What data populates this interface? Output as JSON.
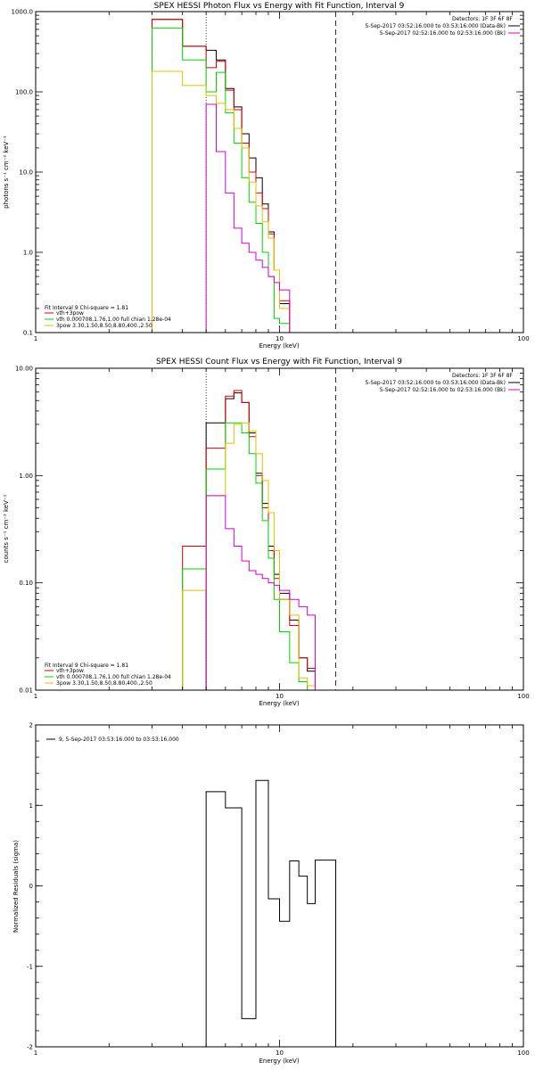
{
  "colors": {
    "axes": "#000000",
    "total": "#000000",
    "fit_sum": "#d40000",
    "vth": "#00d400",
    "bpow": "#e0c000",
    "background": "#d000d0"
  },
  "chart_data": [
    {
      "type": "line",
      "title": "SPEX HESSI Photon Flux vs Energy with Fit Function, Interval 9",
      "xlabel": "Energy (keV)",
      "ylabel": "photons s⁻¹ cm⁻² keV⁻¹",
      "xscale": "log",
      "yscale": "log",
      "xlim": [
        1,
        100
      ],
      "ylim": [
        0.1,
        1000
      ],
      "xtick_labels": [
        "1",
        "10",
        "100"
      ],
      "ytick_values": [
        0.1,
        1,
        10,
        100,
        1000
      ],
      "ytick_labels": [
        "0.1",
        "1.0",
        "10.0",
        "100.0",
        "1000.0"
      ],
      "fit_range_keV": [
        5.0,
        17.0
      ],
      "bin_edges": [
        3.0,
        4.0,
        5.0,
        5.5,
        6.0,
        6.5,
        7.0,
        7.5,
        8.0,
        8.5,
        9.0,
        9.5,
        10.0,
        11.0,
        12.0,
        13.0,
        14.0,
        15.0,
        16.0,
        17.0,
        18.0
      ],
      "series": [
        {
          "key": "total",
          "values": [
            800,
            370,
            330,
            250,
            110,
            65,
            30,
            15,
            8.5,
            4.0,
            1.8,
            0.6,
            0.23
          ]
        },
        {
          "key": "fit_sum",
          "values": [
            800,
            370,
            200,
            240,
            105,
            60,
            23,
            10,
            5.5,
            3.5,
            1.7,
            0.6,
            0.25
          ]
        },
        {
          "key": "vth",
          "values": [
            620,
            250,
            100,
            175,
            55,
            23,
            8.5,
            4.2,
            2.3,
            1.0,
            0.5,
            0.15,
            0.13
          ]
        },
        {
          "key": "bpow",
          "values": [
            180,
            120,
            90,
            72,
            60,
            35,
            20,
            7.5,
            3.8,
            2.4,
            1.5,
            0.6,
            0.2
          ]
        },
        {
          "key": "background",
          "start": 2,
          "values": [
            70,
            18,
            5.5,
            2.0,
            1.3,
            1.0,
            0.8,
            0.65,
            0.5,
            0.42,
            0.34
          ]
        }
      ],
      "annotations": {
        "header": "Detectors: 1F 3F 6F 8F",
        "legend_right": [
          {
            "key": "total",
            "text": "5-Sep-2017 03:52:16.000 to 03:53:16.000 (Data-Bk)"
          },
          {
            "key": "background",
            "text": "5-Sep-2017 02:52:16.000 to 02:53:16.000 (Bk)"
          }
        ],
        "fit_title": "Fit Interval 9   Chi-square = 1.81",
        "legend_left": [
          {
            "key": "fit_sum",
            "text": "vth+3pow"
          },
          {
            "key": "vth",
            "text": "vth 0.000708,1.76,1.00  full chian 1.28e-04"
          },
          {
            "key": "bpow",
            "text": "3pow 3.30,1.50,8.50,8.80,400.,2.50"
          }
        ]
      }
    },
    {
      "type": "line",
      "title": "SPEX HESSI Count Flux vs Energy with Fit Function, Interval 9",
      "xlabel": "Energy (keV)",
      "ylabel": "counts s⁻¹ cm⁻² keV⁻¹",
      "xscale": "log",
      "yscale": "log",
      "xlim": [
        1,
        100
      ],
      "ylim": [
        0.01,
        10
      ],
      "xtick_labels": [
        "1",
        "10",
        "100"
      ],
      "ytick_values": [
        0.01,
        0.1,
        1,
        10
      ],
      "ytick_labels": [
        "0.01",
        "0.10",
        "1.00",
        "10.00"
      ],
      "fit_range_keV": [
        5.0,
        17.0
      ],
      "bin_edges": [
        4.0,
        5.0,
        6.0,
        6.5,
        7.0,
        7.5,
        8.0,
        8.5,
        9.0,
        9.5,
        10.0,
        11.0,
        12.0,
        13.0,
        14.0,
        15.0,
        16.0,
        17.0,
        18.0
      ],
      "series": [
        {
          "key": "total",
          "start": 1,
          "values": [
            3.1,
            5.2,
            5.9,
            4.8,
            2.5,
            1.05,
            0.55,
            0.22,
            0.12,
            0.08,
            0.045,
            0.02,
            0.015
          ]
        },
        {
          "key": "fit_sum",
          "values": [
            0.22,
            1.8,
            5.5,
            6.2,
            4.8,
            2.3,
            1.0,
            0.5,
            0.2,
            0.11,
            0.07,
            0.04,
            0.02,
            0.016
          ]
        },
        {
          "key": "vth",
          "values": [
            0.135,
            1.15,
            3.1,
            3.1,
            2.5,
            1.6,
            0.85,
            0.38,
            0.17,
            0.07,
            0.035,
            0.018,
            0.012
          ]
        },
        {
          "key": "bpow",
          "values": [
            0.085,
            0.65,
            2.0,
            3.0,
            3.1,
            2.6,
            1.6,
            0.9,
            0.45,
            0.2,
            0.07,
            0.05,
            0.013,
            0.011
          ]
        },
        {
          "key": "background",
          "start": 1,
          "values": [
            0.65,
            0.32,
            0.22,
            0.16,
            0.13,
            0.12,
            0.11,
            0.1,
            0.095,
            0.085,
            0.07,
            0.06,
            0.05
          ]
        }
      ],
      "annotations": {
        "header": "Detectors: 1F 3F 6F 8F",
        "legend_right": [
          {
            "key": "total",
            "text": "5-Sep-2017 03:52:16.000 to 03:53:16.000 (Data-Bk)"
          },
          {
            "key": "background",
            "text": "5-Sep-2017 02:52:16.000 to 02:53:16.000 (Bk)"
          }
        ],
        "fit_title": "Fit Interval 9   Chi-square = 1.81",
        "legend_left": [
          {
            "key": "fit_sum",
            "text": "vth+3pow"
          },
          {
            "key": "vth",
            "text": "vth 0.000708,1.76,1.00  full chian 1.28e-04"
          },
          {
            "key": "bpow",
            "text": "3pow 3.30,1.50,8.50,8.80,400.,2.50"
          }
        ]
      }
    },
    {
      "type": "line",
      "title": "",
      "xlabel": "Energy (keV)",
      "ylabel": "Normalized Residuals (sigma)",
      "xscale": "log",
      "yscale": "linear",
      "xlim": [
        1,
        100
      ],
      "ylim": [
        -2,
        2
      ],
      "xtick_labels": [
        "1",
        "10",
        "100"
      ],
      "ytick_values": [
        -2,
        -1,
        0,
        1,
        2
      ],
      "ytick_labels": [
        "-2",
        "-1",
        "0",
        "1",
        "2"
      ],
      "bin_edges": [
        5.0,
        6.0,
        7.0,
        8.0,
        9.0,
        10.0,
        11.0,
        12.0,
        13.0,
        14.0,
        15.0,
        17.0
      ],
      "series": [
        {
          "key": "total",
          "name": "9,  5-Sep-2017 03:53:16.000 to 03:53:16.000",
          "values": [
            1.17,
            0.97,
            -1.65,
            1.31,
            -0.16,
            -0.44,
            0.31,
            0.12,
            -0.22,
            0.32,
            0.32
          ]
        }
      ],
      "annotations": {
        "legend_left": [
          {
            "key": "total",
            "text": "9,  5-Sep-2017 03:53:16.000 to 03:53:16.000"
          }
        ]
      }
    }
  ]
}
